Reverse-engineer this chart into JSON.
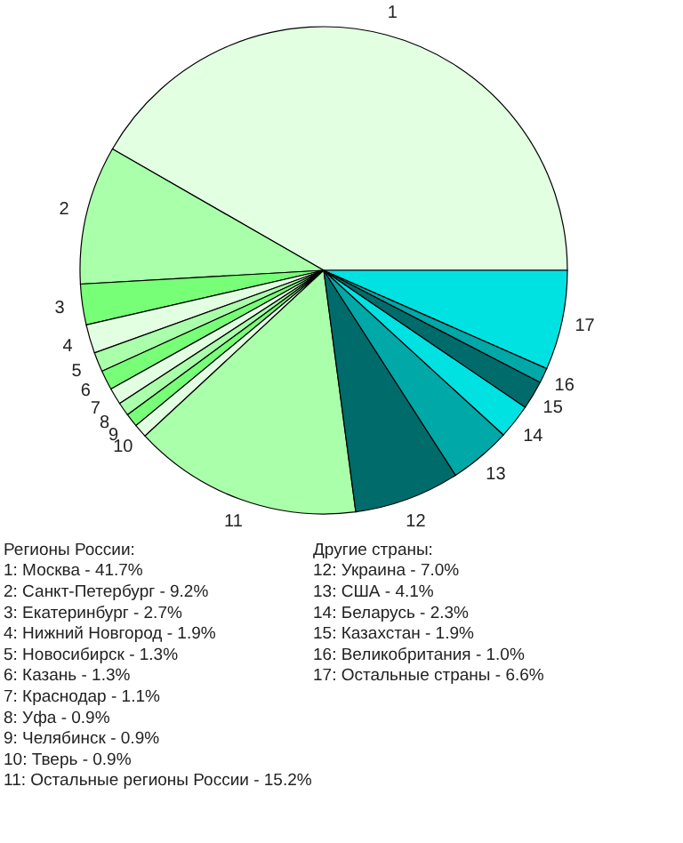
{
  "chart_data": {
    "type": "pie",
    "categories": [
      "1",
      "2",
      "3",
      "4",
      "5",
      "6",
      "7",
      "8",
      "9",
      "10",
      "11",
      "12",
      "13",
      "14",
      "15",
      "16",
      "17"
    ],
    "values": [
      41.7,
      9.2,
      2.7,
      1.9,
      1.3,
      1.3,
      1.1,
      0.9,
      0.9,
      0.9,
      15.2,
      7.0,
      4.1,
      2.3,
      1.9,
      1.0,
      6.6
    ],
    "colors": [
      "#e2ffe2",
      "#aaffaa",
      "#77ff77",
      "#e2ffe2",
      "#aaffaa",
      "#77ff77",
      "#e2ffe2",
      "#aaffaa",
      "#77ff77",
      "#e2ffe2",
      "#aaffaa",
      "#006b6b",
      "#00a8a8",
      "#00e2e2",
      "#006b6b",
      "#00a8a8",
      "#00e2e2"
    ],
    "annotations": [
      "Регионы России:",
      "1: Москва - 41.7%",
      "2: Санкт-Петербург - 9.2%",
      "3: Екатеринбург - 2.7%",
      "4: Нижний Новгород - 1.9%",
      "5: Новосибирск - 1.3%",
      "6: Казань - 1.3%",
      "7: Краснодар - 1.1%",
      "8: Уфа - 0.9%",
      "9: Челябинск - 0.9%",
      "10: Тверь - 0.9%",
      "11: Остальные регионы России - 15.2%",
      "Другие страны:",
      "12: Украина - 7.0%",
      "13: США - 4.1%",
      "14: Беларусь - 2.3%",
      "15: Казахстан - 1.9%",
      "16: Великобритания - 1.0%",
      "17: Остальные страны - 6.6%"
    ]
  }
}
